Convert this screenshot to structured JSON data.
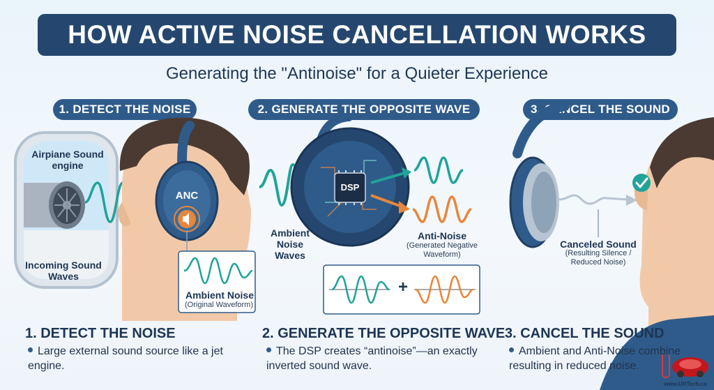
{
  "title": "HOW ACTIVE NOISE CANCELLATION WORKS",
  "subtitle": "Generating the \"Antinoise\" for a Quieter Experience",
  "steps": [
    {
      "pill": "1. DETECT THE NOISE",
      "heading": "1. DETECT THE NOISE",
      "body": "Large external sound source like a jet engine."
    },
    {
      "pill": "2. GENERATE THE OPPOSITE WAVE",
      "heading": "2. GENERATE THE OPPOSITE WAVE",
      "body": "The DSP creates “antinoise”—an exactly inverted sound wave."
    },
    {
      "pill": "3. CANCEL THE SOUND",
      "heading": "3. CANCEL THE SOUND",
      "body": "Ambient and Anti-Noise combine resulting in reduced noise."
    }
  ],
  "labels": {
    "airplane": "Airpiane Sound engine",
    "incoming": "Incoming Sound Waves",
    "anc": "ANC",
    "ambient_box": "Ambient Noise",
    "ambient_box_sub": "(Original Waveform)",
    "ambient_waves": "Ambient Noise Waves",
    "dsp": "DSP",
    "anti_noise": "Anti-Noise",
    "anti_noise_sub": "(Generated Negative Waveform)",
    "plus": "+",
    "canceled": "Canceled Sound",
    "canceled_sub": "(Resulting Silence / Reduced Noise)"
  },
  "logo": {
    "url": "www.URTech.ca"
  },
  "colors": {
    "navy": "#25476f",
    "teal": "#1fa39a",
    "orange": "#e8863a",
    "skin": "#f2c9a8",
    "hair": "#4a3a32"
  }
}
